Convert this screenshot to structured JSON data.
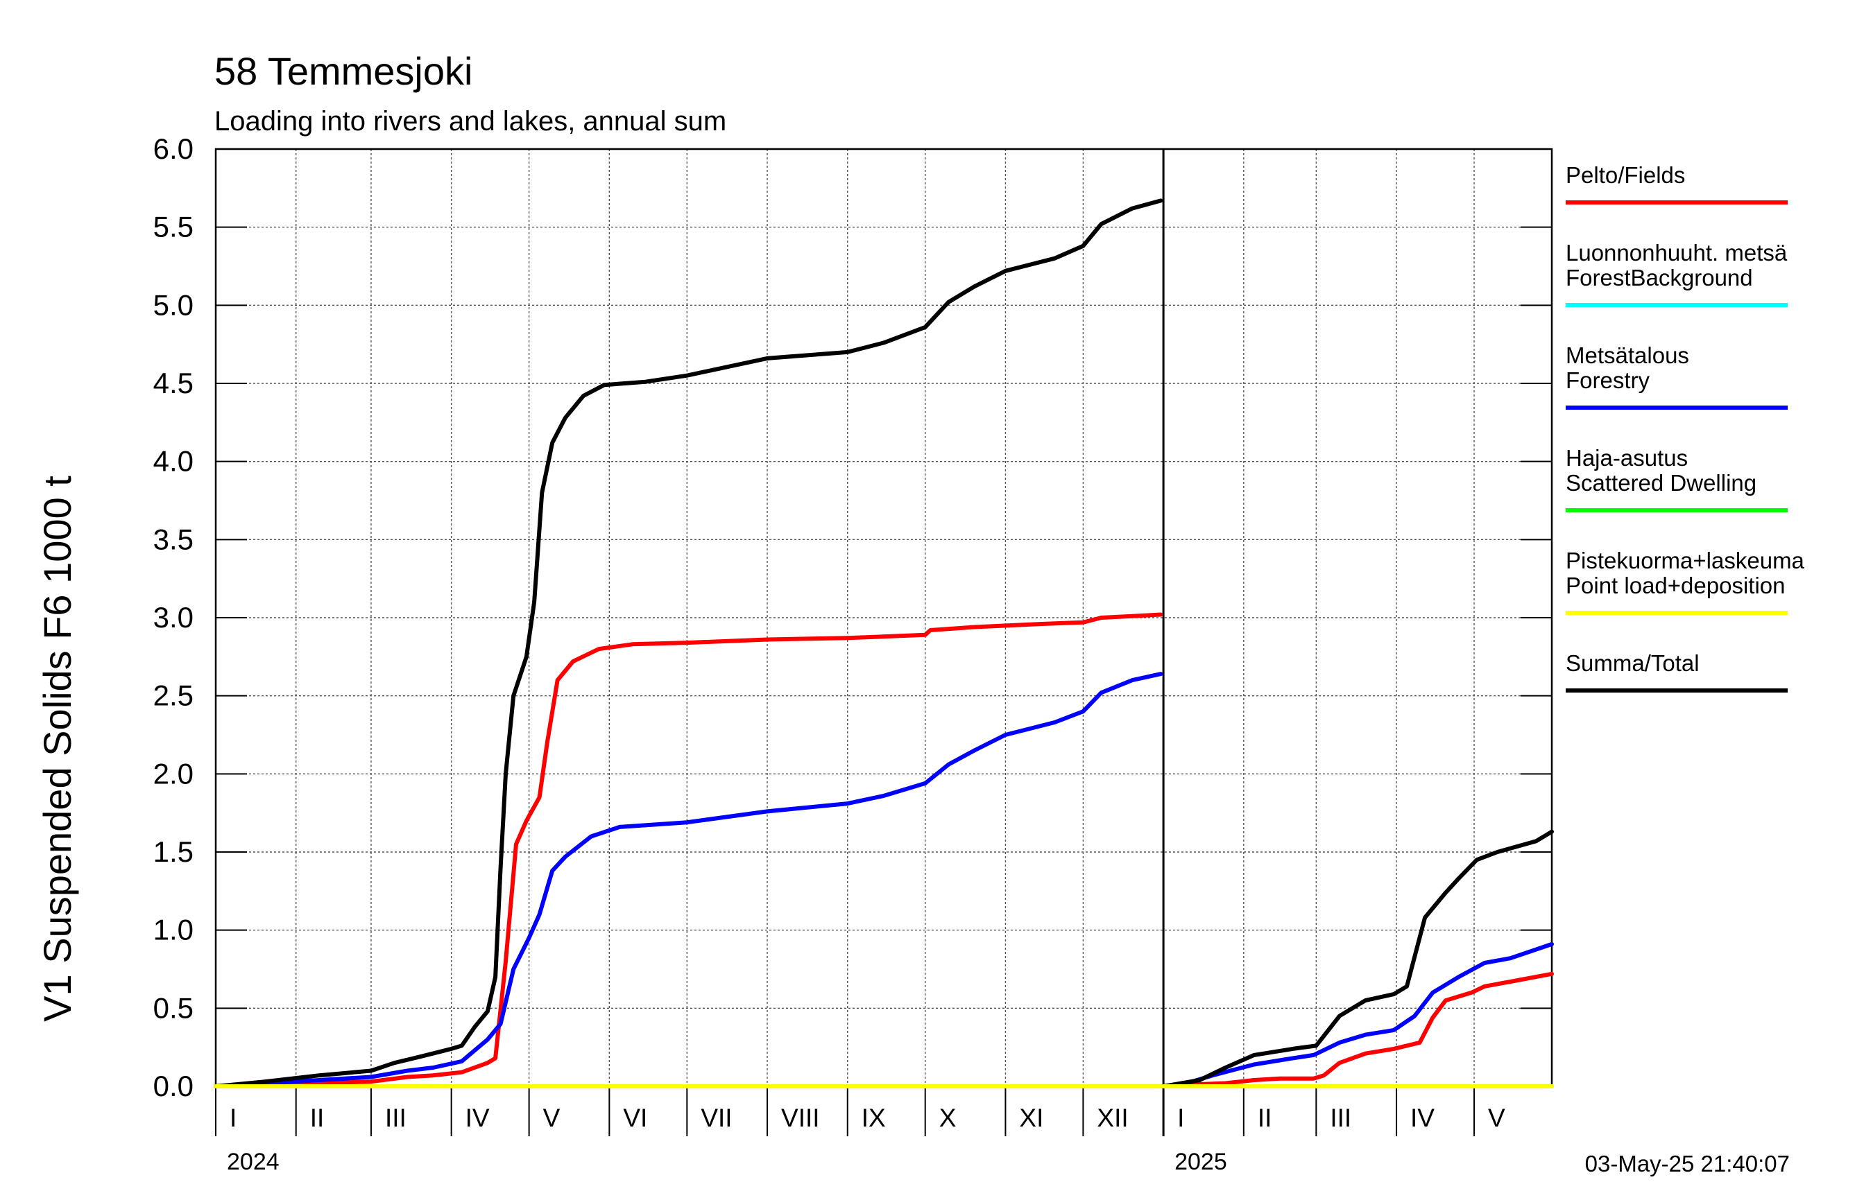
{
  "chart_data": {
    "type": "line",
    "title": "58 Temmesjoki",
    "subtitle": "Loading into rivers and lakes, annual sum",
    "ylabel": "V1 Suspended Solids F6 1000 t",
    "xlabel": "",
    "ylim": [
      0,
      6
    ],
    "yticks": [
      "0.0",
      "0.5",
      "1.0",
      "1.5",
      "2.0",
      "2.5",
      "3.0",
      "3.5",
      "4.0",
      "4.5",
      "5.0",
      "5.5",
      "6.0"
    ],
    "grid": true,
    "legend_position": "right",
    "timestamp": "03-May-25 21:40:07",
    "x_range": [
      "2024-01-01",
      "2025-05-31"
    ],
    "years": [
      {
        "label": "2024",
        "start": "2024-01-01",
        "end": "2024-12-31"
      },
      {
        "label": "2025",
        "start": "2025-01-01",
        "end": "2025-05-31"
      }
    ],
    "month_labels": [
      {
        "label": "I",
        "date": "2024-01-01"
      },
      {
        "label": "II",
        "date": "2024-02-01"
      },
      {
        "label": "III",
        "date": "2024-03-01"
      },
      {
        "label": "IV",
        "date": "2024-04-01"
      },
      {
        "label": "V",
        "date": "2024-05-01"
      },
      {
        "label": "VI",
        "date": "2024-06-01"
      },
      {
        "label": "VII",
        "date": "2024-07-01"
      },
      {
        "label": "VIII",
        "date": "2024-08-01"
      },
      {
        "label": "IX",
        "date": "2024-09-01"
      },
      {
        "label": "X",
        "date": "2024-10-01"
      },
      {
        "label": "XI",
        "date": "2024-11-01"
      },
      {
        "label": "XII",
        "date": "2024-12-01"
      },
      {
        "label": "I",
        "date": "2025-01-01"
      },
      {
        "label": "II",
        "date": "2025-02-01"
      },
      {
        "label": "III",
        "date": "2025-03-01"
      },
      {
        "label": "IV",
        "date": "2025-04-01"
      },
      {
        "label": "V",
        "date": "2025-05-01"
      }
    ],
    "series": [
      {
        "name_lines": [
          "Pelto/Fields"
        ],
        "color": "#ff0000",
        "segments": [
          [
            [
              "2024-01-01",
              0.0
            ],
            [
              "2024-01-20",
              0.01
            ],
            [
              "2024-02-10",
              0.02
            ],
            [
              "2024-03-01",
              0.03
            ],
            [
              "2024-03-15",
              0.06
            ],
            [
              "2024-03-25",
              0.07
            ],
            [
              "2024-04-05",
              0.09
            ],
            [
              "2024-04-15",
              0.15
            ],
            [
              "2024-04-18",
              0.18
            ],
            [
              "2024-04-22",
              0.8
            ],
            [
              "2024-04-26",
              1.55
            ],
            [
              "2024-04-30",
              1.7
            ],
            [
              "2024-05-05",
              1.85
            ],
            [
              "2024-05-08",
              2.2
            ],
            [
              "2024-05-12",
              2.6
            ],
            [
              "2024-05-18",
              2.72
            ],
            [
              "2024-05-28",
              2.8
            ],
            [
              "2024-06-10",
              2.83
            ],
            [
              "2024-07-01",
              2.84
            ],
            [
              "2024-08-01",
              2.86
            ],
            [
              "2024-09-01",
              2.87
            ],
            [
              "2024-10-01",
              2.89
            ],
            [
              "2024-10-03",
              2.92
            ],
            [
              "2024-10-20",
              2.94
            ],
            [
              "2024-11-15",
              2.96
            ],
            [
              "2024-12-01",
              2.97
            ],
            [
              "2024-12-08",
              3.0
            ],
            [
              "2024-12-20",
              3.01
            ],
            [
              "2024-12-31",
              3.02
            ]
          ],
          [
            [
              "2025-01-01",
              0.0
            ],
            [
              "2025-01-10",
              0.01
            ],
            [
              "2025-01-25",
              0.02
            ],
            [
              "2025-02-05",
              0.04
            ],
            [
              "2025-02-15",
              0.05
            ],
            [
              "2025-02-28",
              0.05
            ],
            [
              "2025-03-04",
              0.07
            ],
            [
              "2025-03-10",
              0.15
            ],
            [
              "2025-03-20",
              0.21
            ],
            [
              "2025-03-31",
              0.24
            ],
            [
              "2025-04-10",
              0.28
            ],
            [
              "2025-04-15",
              0.44
            ],
            [
              "2025-04-20",
              0.55
            ],
            [
              "2025-04-30",
              0.6
            ],
            [
              "2025-05-05",
              0.64
            ],
            [
              "2025-05-15",
              0.67
            ],
            [
              "2025-05-31",
              0.72
            ]
          ]
        ]
      },
      {
        "name_lines": [
          "Luonnonhuuht. metsä",
          "ForestBackground"
        ],
        "color": "#00ffff",
        "segments": [
          [
            [
              "2024-01-01",
              0.0
            ],
            [
              "2024-12-31",
              0.0
            ]
          ],
          [
            [
              "2025-01-01",
              0.0
            ],
            [
              "2025-05-31",
              0.0
            ]
          ]
        ]
      },
      {
        "name_lines": [
          "Metsätalous",
          "Forestry"
        ],
        "color": "#0000ff",
        "segments": [
          [
            [
              "2024-01-01",
              0.0
            ],
            [
              "2024-01-20",
              0.02
            ],
            [
              "2024-02-10",
              0.04
            ],
            [
              "2024-03-01",
              0.06
            ],
            [
              "2024-03-15",
              0.1
            ],
            [
              "2024-03-25",
              0.12
            ],
            [
              "2024-04-05",
              0.16
            ],
            [
              "2024-04-15",
              0.3
            ],
            [
              "2024-04-20",
              0.4
            ],
            [
              "2024-04-25",
              0.75
            ],
            [
              "2024-05-01",
              0.95
            ],
            [
              "2024-05-05",
              1.1
            ],
            [
              "2024-05-10",
              1.38
            ],
            [
              "2024-05-15",
              1.47
            ],
            [
              "2024-05-25",
              1.6
            ],
            [
              "2024-06-05",
              1.66
            ],
            [
              "2024-07-01",
              1.69
            ],
            [
              "2024-08-01",
              1.76
            ],
            [
              "2024-09-01",
              1.81
            ],
            [
              "2024-09-15",
              1.86
            ],
            [
              "2024-10-01",
              1.94
            ],
            [
              "2024-10-10",
              2.06
            ],
            [
              "2024-10-20",
              2.15
            ],
            [
              "2024-11-01",
              2.25
            ],
            [
              "2024-11-20",
              2.33
            ],
            [
              "2024-12-01",
              2.4
            ],
            [
              "2024-12-08",
              2.52
            ],
            [
              "2024-12-20",
              2.6
            ],
            [
              "2024-12-31",
              2.64
            ]
          ],
          [
            [
              "2025-01-01",
              0.0
            ],
            [
              "2025-01-10",
              0.02
            ],
            [
              "2025-01-20",
              0.07
            ],
            [
              "2025-02-05",
              0.14
            ],
            [
              "2025-02-20",
              0.18
            ],
            [
              "2025-02-28",
              0.2
            ],
            [
              "2025-03-10",
              0.28
            ],
            [
              "2025-03-20",
              0.33
            ],
            [
              "2025-03-31",
              0.36
            ],
            [
              "2025-04-08",
              0.45
            ],
            [
              "2025-04-15",
              0.6
            ],
            [
              "2025-04-25",
              0.7
            ],
            [
              "2025-05-05",
              0.79
            ],
            [
              "2025-05-15",
              0.82
            ],
            [
              "2025-05-31",
              0.91
            ]
          ]
        ]
      },
      {
        "name_lines": [
          "Haja-asutus",
          "Scattered Dwelling"
        ],
        "color": "#00ff00",
        "segments": [
          [
            [
              "2024-01-01",
              0.0
            ],
            [
              "2024-12-31",
              0.0
            ]
          ],
          [
            [
              "2025-01-01",
              0.0
            ],
            [
              "2025-05-31",
              0.0
            ]
          ]
        ]
      },
      {
        "name_lines": [
          "Pistekuorma+laskeuma",
          "Point load+deposition"
        ],
        "color": "#ffff00",
        "segments": [
          [
            [
              "2024-01-01",
              0.0
            ],
            [
              "2024-12-31",
              0.0
            ]
          ],
          [
            [
              "2025-01-01",
              0.0
            ],
            [
              "2025-05-31",
              0.0
            ]
          ]
        ]
      },
      {
        "name_lines": [
          "Summa/Total"
        ],
        "color": "#000000",
        "segments": [
          [
            [
              "2024-01-01",
              0.0
            ],
            [
              "2024-01-20",
              0.03
            ],
            [
              "2024-02-10",
              0.07
            ],
            [
              "2024-03-01",
              0.1
            ],
            [
              "2024-03-10",
              0.15
            ],
            [
              "2024-03-20",
              0.19
            ],
            [
              "2024-04-01",
              0.24
            ],
            [
              "2024-04-05",
              0.26
            ],
            [
              "2024-04-10",
              0.38
            ],
            [
              "2024-04-15",
              0.48
            ],
            [
              "2024-04-18",
              0.7
            ],
            [
              "2024-04-20",
              1.4
            ],
            [
              "2024-04-22",
              2.0
            ],
            [
              "2024-04-25",
              2.5
            ],
            [
              "2024-04-30",
              2.75
            ],
            [
              "2024-05-03",
              3.1
            ],
            [
              "2024-05-06",
              3.8
            ],
            [
              "2024-05-10",
              4.12
            ],
            [
              "2024-05-15",
              4.28
            ],
            [
              "2024-05-22",
              4.42
            ],
            [
              "2024-05-30",
              4.49
            ],
            [
              "2024-06-15",
              4.51
            ],
            [
              "2024-07-01",
              4.55
            ],
            [
              "2024-08-01",
              4.66
            ],
            [
              "2024-09-01",
              4.7
            ],
            [
              "2024-09-15",
              4.76
            ],
            [
              "2024-10-01",
              4.86
            ],
            [
              "2024-10-10",
              5.02
            ],
            [
              "2024-10-20",
              5.12
            ],
            [
              "2024-11-01",
              5.22
            ],
            [
              "2024-11-20",
              5.3
            ],
            [
              "2024-12-01",
              5.38
            ],
            [
              "2024-12-08",
              5.52
            ],
            [
              "2024-12-20",
              5.62
            ],
            [
              "2024-12-31",
              5.67
            ]
          ],
          [
            [
              "2025-01-01",
              0.0
            ],
            [
              "2025-01-15",
              0.04
            ],
            [
              "2025-01-25",
              0.12
            ],
            [
              "2025-02-05",
              0.2
            ],
            [
              "2025-02-20",
              0.24
            ],
            [
              "2025-03-01",
              0.26
            ],
            [
              "2025-03-10",
              0.45
            ],
            [
              "2025-03-20",
              0.55
            ],
            [
              "2025-03-31",
              0.59
            ],
            [
              "2025-04-05",
              0.64
            ],
            [
              "2025-04-12",
              1.08
            ],
            [
              "2025-04-20",
              1.24
            ],
            [
              "2025-04-25",
              1.33
            ],
            [
              "2025-05-02",
              1.45
            ],
            [
              "2025-05-10",
              1.5
            ],
            [
              "2025-05-25",
              1.57
            ],
            [
              "2025-05-31",
              1.63
            ]
          ]
        ]
      }
    ]
  }
}
